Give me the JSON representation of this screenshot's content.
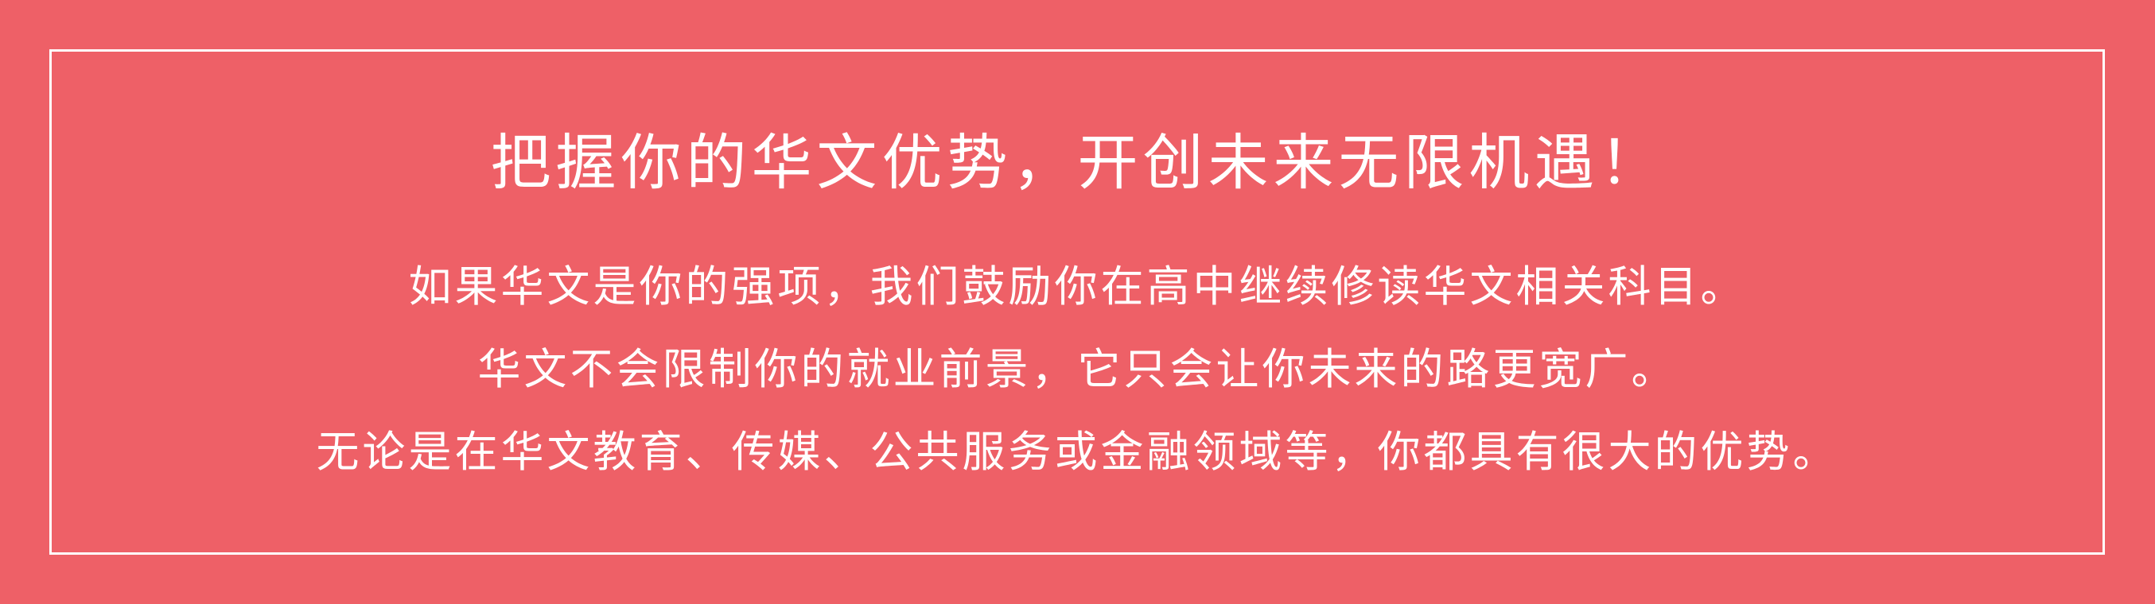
{
  "colors": {
    "background": "#EE6067",
    "text": "#FFFFFF",
    "border": "#FFFFFF"
  },
  "banner": {
    "title": "把握你的华文优势，开创未来无限机遇！",
    "lines": [
      "如果华文是你的强项，我们鼓励你在高中继续修读华文相关科目。",
      "华文不会限制你的就业前景，它只会让你未来的路更宽广。",
      "无论是在华文教育、传媒、公共服务或金融领域等，你都具有很大的优势。"
    ]
  }
}
